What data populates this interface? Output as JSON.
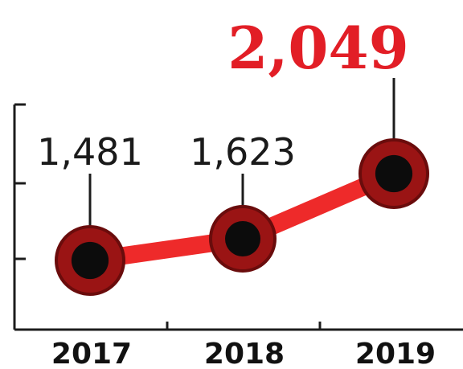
{
  "chart_data": {
    "type": "line",
    "title": "",
    "xlabel": "",
    "ylabel": "",
    "categories": [
      "2017",
      "2018",
      "2019"
    ],
    "series": [
      {
        "values": [
          1481,
          1623,
          2049
        ],
        "data_labels": [
          "1,481",
          "1,623",
          "2,049"
        ],
        "color": "#ee2a2a",
        "marker_ring_color": "#9a1414",
        "marker_ring_edge_color": "#6a0c0c",
        "marker_center_color": "#0c0c0c"
      }
    ],
    "highlighted_point": {
      "index": 2,
      "label_color": "#e21e26"
    },
    "grid": false,
    "legend": "none",
    "axis_color": "#1c1c1c"
  }
}
